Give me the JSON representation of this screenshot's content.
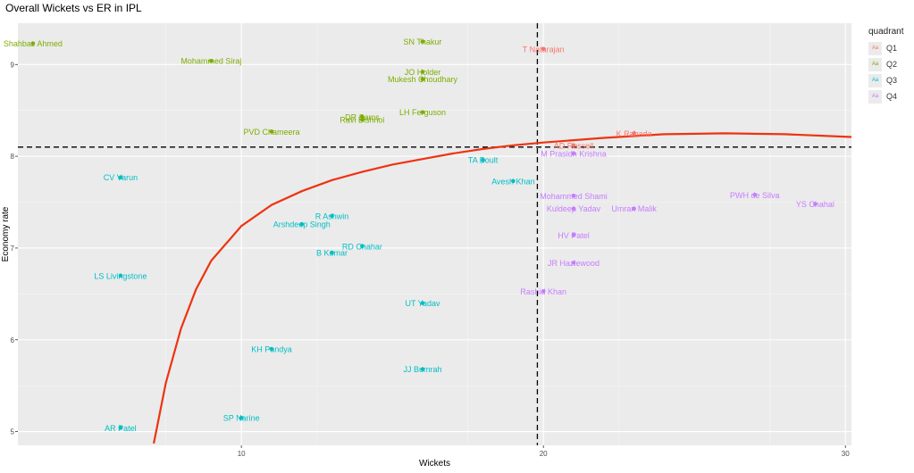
{
  "chart_data": {
    "type": "scatter",
    "title": "Overall Wickets vs ER in IPL",
    "xlabel": "Wickets",
    "ylabel": "Economy rate",
    "xlim": [
      2.6,
      30.2
    ],
    "ylim": [
      4.85,
      9.45
    ],
    "x_ticks": [
      10,
      20,
      30
    ],
    "y_ticks": [
      5,
      6,
      7,
      8,
      9
    ],
    "grid": true,
    "legend_title": "quadrant",
    "legend_position": "right",
    "legend_key_glyph": "Aa",
    "quadrants": [
      {
        "name": "Q1",
        "color": "#F8766D"
      },
      {
        "name": "Q2",
        "color": "#7CAE00"
      },
      {
        "name": "Q3",
        "color": "#00BFC4"
      },
      {
        "name": "Q4",
        "color": "#C77CFF"
      }
    ],
    "reference_lines": {
      "vertical_x": 19.8,
      "horizontal_y": 8.1
    },
    "curve_color": "#EE3311",
    "curve_samples": [
      [
        7.1,
        4.87
      ],
      [
        7.5,
        5.53
      ],
      [
        8,
        6.12
      ],
      [
        8.5,
        6.55
      ],
      [
        9,
        6.86
      ],
      [
        10,
        7.24
      ],
      [
        11,
        7.47
      ],
      [
        12,
        7.62
      ],
      [
        13,
        7.74
      ],
      [
        14,
        7.83
      ],
      [
        15,
        7.91
      ],
      [
        16,
        7.97
      ],
      [
        17,
        8.03
      ],
      [
        18,
        8.08
      ],
      [
        19,
        8.12
      ],
      [
        20,
        8.15
      ],
      [
        22,
        8.2
      ],
      [
        24,
        8.24
      ],
      [
        26,
        8.25
      ],
      [
        28,
        8.24
      ],
      [
        30.2,
        8.21
      ]
    ],
    "points": [
      {
        "label": "Shahbaz Ahmed",
        "x": 3.1,
        "y": 9.23,
        "quadrant": "Q2"
      },
      {
        "label": "SN Thakur",
        "x": 16,
        "y": 9.25,
        "quadrant": "Q2"
      },
      {
        "label": "T Natarajan",
        "x": 20,
        "y": 9.17,
        "quadrant": "Q1"
      },
      {
        "label": "Mohammed Siraj",
        "x": 9,
        "y": 9.04,
        "quadrant": "Q2"
      },
      {
        "label": "JO Holder",
        "x": 16,
        "y": 8.92,
        "quadrant": "Q2"
      },
      {
        "label": "Mukesh Choudhary",
        "x": 16,
        "y": 8.84,
        "quadrant": "Q2"
      },
      {
        "label": "LH Ferguson",
        "x": 16,
        "y": 8.48,
        "quadrant": "Q2"
      },
      {
        "label": "DR Sams",
        "x": 14,
        "y": 8.43,
        "quadrant": "Q2"
      },
      {
        "label": "Ravi Bishnoi",
        "x": 14,
        "y": 8.4,
        "quadrant": "Q2"
      },
      {
        "label": "PVD Chameera",
        "x": 11,
        "y": 8.27,
        "quadrant": "Q2"
      },
      {
        "label": "K Rabada",
        "x": 23,
        "y": 8.25,
        "quadrant": "Q1"
      },
      {
        "label": "AD Russell",
        "x": 21,
        "y": 8.12,
        "quadrant": "Q1"
      },
      {
        "label": "M Prasidh Krishna",
        "x": 21,
        "y": 8.03,
        "quadrant": "Q4"
      },
      {
        "label": "TA Boult",
        "x": 18,
        "y": 7.96,
        "quadrant": "Q3"
      },
      {
        "label": "CV Varun",
        "x": 6,
        "y": 7.77,
        "quadrant": "Q3"
      },
      {
        "label": "Avesh Khan",
        "x": 19,
        "y": 7.73,
        "quadrant": "Q3"
      },
      {
        "label": "PWH de Silva",
        "x": 27,
        "y": 7.58,
        "quadrant": "Q4"
      },
      {
        "label": "Mohammed Shami",
        "x": 21,
        "y": 7.57,
        "quadrant": "Q4"
      },
      {
        "label": "YS Chahal",
        "x": 29,
        "y": 7.48,
        "quadrant": "Q4"
      },
      {
        "label": "Kuldeep Yadav",
        "x": 21,
        "y": 7.43,
        "quadrant": "Q4"
      },
      {
        "label": "Umran Malik",
        "x": 23,
        "y": 7.43,
        "quadrant": "Q4"
      },
      {
        "label": "R Ashwin",
        "x": 13,
        "y": 7.35,
        "quadrant": "Q3"
      },
      {
        "label": "Arshdeep Singh",
        "x": 12,
        "y": 7.26,
        "quadrant": "Q3"
      },
      {
        "label": "HV Patel",
        "x": 21,
        "y": 7.14,
        "quadrant": "Q4"
      },
      {
        "label": "RD Chahar",
        "x": 14,
        "y": 7.02,
        "quadrant": "Q3"
      },
      {
        "label": "B Kumar",
        "x": 13,
        "y": 6.95,
        "quadrant": "Q3"
      },
      {
        "label": "JR Hazlewood",
        "x": 21,
        "y": 6.84,
        "quadrant": "Q4"
      },
      {
        "label": "LS Livingstone",
        "x": 6,
        "y": 6.7,
        "quadrant": "Q3"
      },
      {
        "label": "Rashid Khan",
        "x": 20,
        "y": 6.53,
        "quadrant": "Q4"
      },
      {
        "label": "UT Yadav",
        "x": 16,
        "y": 6.4,
        "quadrant": "Q3"
      },
      {
        "label": "KH Pandya",
        "x": 11,
        "y": 5.9,
        "quadrant": "Q3"
      },
      {
        "label": "JJ Bumrah",
        "x": 16,
        "y": 5.68,
        "quadrant": "Q3"
      },
      {
        "label": "SP Narine",
        "x": 10,
        "y": 5.15,
        "quadrant": "Q3"
      },
      {
        "label": "AR Patel",
        "x": 6,
        "y": 5.04,
        "quadrant": "Q3"
      }
    ]
  }
}
